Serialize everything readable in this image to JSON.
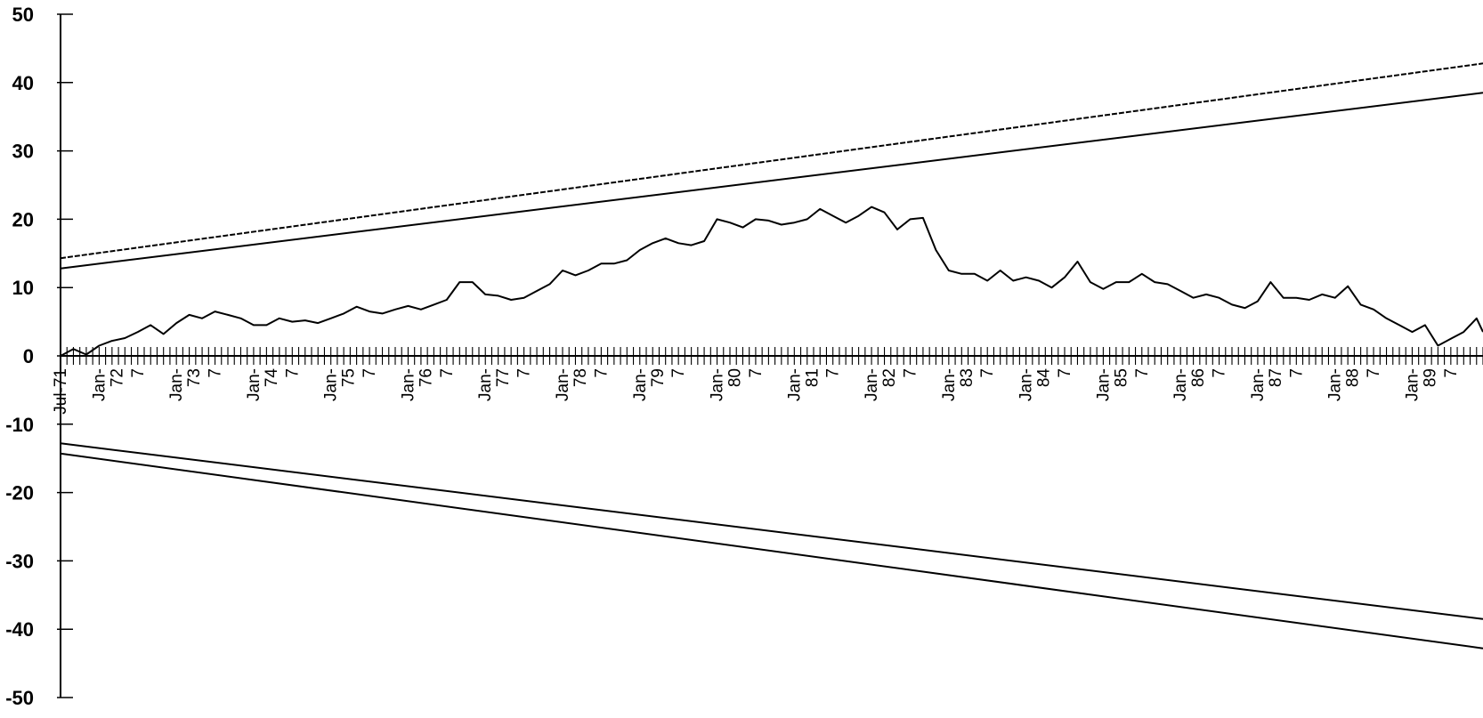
{
  "chart_data": {
    "type": "line",
    "title": "",
    "xlabel": "",
    "ylabel": "",
    "x_range": [
      "1971-07",
      "1989-12"
    ],
    "ylim": [
      -50,
      50
    ],
    "grid": false,
    "legend": "none",
    "y_ticks": [
      50,
      40,
      30,
      20,
      10,
      0,
      -10,
      -20,
      -30,
      -40,
      -50
    ],
    "y_tick_labels": [
      "50",
      "40",
      "30",
      "20",
      "10",
      "0",
      "-10",
      "-20",
      "-30",
      "-40",
      "-50"
    ],
    "x_tick_labels": [
      {
        "date": "1971-07",
        "line1": "Jul-71",
        "line2": ""
      },
      {
        "date": "1972-01",
        "line1": "Jan-",
        "line2": "72"
      },
      {
        "date": "1972-07",
        "line1": "7",
        "line2": ""
      },
      {
        "date": "1973-01",
        "line1": "Jan-",
        "line2": "73"
      },
      {
        "date": "1973-07",
        "line1": "7",
        "line2": ""
      },
      {
        "date": "1974-01",
        "line1": "Jan-",
        "line2": "74"
      },
      {
        "date": "1974-07",
        "line1": "7",
        "line2": ""
      },
      {
        "date": "1975-01",
        "line1": "Jan-",
        "line2": "75"
      },
      {
        "date": "1975-07",
        "line1": "7",
        "line2": ""
      },
      {
        "date": "1976-01",
        "line1": "Jan-",
        "line2": "76"
      },
      {
        "date": "1976-07",
        "line1": "7",
        "line2": ""
      },
      {
        "date": "1977-01",
        "line1": "Jan-",
        "line2": "77"
      },
      {
        "date": "1977-07",
        "line1": "7",
        "line2": ""
      },
      {
        "date": "1978-01",
        "line1": "Jan-",
        "line2": "78"
      },
      {
        "date": "1978-07",
        "line1": "7",
        "line2": ""
      },
      {
        "date": "1979-01",
        "line1": "Jan-",
        "line2": "79"
      },
      {
        "date": "1979-07",
        "line1": "7",
        "line2": ""
      },
      {
        "date": "1980-01",
        "line1": "Jan-",
        "line2": "80"
      },
      {
        "date": "1980-07",
        "line1": "7",
        "line2": ""
      },
      {
        "date": "1981-01",
        "line1": "Jan-",
        "line2": "81"
      },
      {
        "date": "1981-07",
        "line1": "7",
        "line2": ""
      },
      {
        "date": "1982-01",
        "line1": "Jan-",
        "line2": "82"
      },
      {
        "date": "1982-07",
        "line1": "7",
        "line2": ""
      },
      {
        "date": "1983-01",
        "line1": "Jan-",
        "line2": "83"
      },
      {
        "date": "1983-07",
        "line1": "7",
        "line2": ""
      },
      {
        "date": "1984-01",
        "line1": "Jan-",
        "line2": "84"
      },
      {
        "date": "1984-07",
        "line1": "7",
        "line2": ""
      },
      {
        "date": "1985-01",
        "line1": "Jan-",
        "line2": "85"
      },
      {
        "date": "1985-07",
        "line1": "7",
        "line2": ""
      },
      {
        "date": "1986-01",
        "line1": "Jan-",
        "line2": "86"
      },
      {
        "date": "1986-07",
        "line1": "7",
        "line2": ""
      },
      {
        "date": "1987-01",
        "line1": "Jan-",
        "line2": "87"
      },
      {
        "date": "1987-07",
        "line1": "7",
        "line2": ""
      },
      {
        "date": "1988-01",
        "line1": "Jan-",
        "line2": "88"
      },
      {
        "date": "1988-07",
        "line1": "7",
        "line2": ""
      },
      {
        "date": "1989-01",
        "line1": "Jan-",
        "line2": "89"
      },
      {
        "date": "1989-07",
        "line1": "7",
        "line2": ""
      }
    ],
    "series": [
      {
        "style": "solid",
        "x": [
          "1971-07",
          "1971-09",
          "1971-11",
          "1972-01",
          "1972-03",
          "1972-05",
          "1972-07",
          "1972-09",
          "1972-11",
          "1973-01",
          "1973-03",
          "1973-05",
          "1973-07",
          "1973-09",
          "1973-11",
          "1974-01",
          "1974-03",
          "1974-05",
          "1974-07",
          "1974-09",
          "1974-11",
          "1975-01",
          "1975-03",
          "1975-05",
          "1975-07",
          "1975-09",
          "1975-11",
          "1976-01",
          "1976-03",
          "1976-05",
          "1976-07",
          "1976-09",
          "1976-11",
          "1977-01",
          "1977-03",
          "1977-05",
          "1977-07",
          "1977-09",
          "1977-11",
          "1978-01",
          "1978-03",
          "1978-05",
          "1978-07",
          "1978-09",
          "1978-11",
          "1979-01",
          "1979-03",
          "1979-05",
          "1979-07",
          "1979-09",
          "1979-11",
          "1980-01",
          "1980-03",
          "1980-05",
          "1980-07",
          "1980-09",
          "1980-11",
          "1981-01",
          "1981-03",
          "1981-05",
          "1981-07",
          "1981-09",
          "1981-11",
          "1982-01",
          "1982-03",
          "1982-05",
          "1982-07",
          "1982-09",
          "1982-11",
          "1983-01",
          "1983-03",
          "1983-05",
          "1983-07",
          "1983-09",
          "1983-11",
          "1984-01",
          "1984-03",
          "1984-05",
          "1984-07",
          "1984-09",
          "1984-11",
          "1985-01",
          "1985-03",
          "1985-05",
          "1985-07",
          "1985-09",
          "1985-11",
          "1986-01",
          "1986-03",
          "1986-05",
          "1986-07",
          "1986-09",
          "1986-11",
          "1987-01",
          "1987-03",
          "1987-05",
          "1987-07",
          "1987-09",
          "1987-11",
          "1988-01",
          "1988-03",
          "1988-05",
          "1988-07",
          "1988-09",
          "1988-11",
          "1989-01",
          "1989-03",
          "1989-05",
          "1989-07",
          "1989-09",
          "1989-11",
          "1989-12"
        ],
        "y": [
          0.0,
          1.0,
          0.2,
          1.5,
          2.2,
          2.6,
          3.5,
          4.5,
          3.2,
          4.8,
          6.0,
          5.5,
          6.5,
          6.0,
          5.5,
          4.5,
          4.5,
          5.5,
          5.0,
          5.2,
          4.8,
          5.5,
          6.2,
          7.2,
          6.5,
          6.2,
          6.8,
          7.3,
          6.8,
          7.5,
          8.2,
          10.8,
          10.8,
          9.0,
          8.8,
          8.2,
          8.5,
          9.5,
          10.5,
          12.5,
          11.8,
          12.5,
          13.5,
          13.5,
          14.0,
          15.5,
          16.5,
          17.2,
          16.5,
          16.2,
          16.8,
          20.0,
          19.5,
          18.8,
          20.0,
          19.8,
          19.2,
          19.5,
          20.0,
          21.5,
          20.5,
          19.5,
          20.5,
          21.8,
          21.0,
          18.5,
          20.0,
          20.2,
          15.5,
          12.5,
          12.0,
          12.0,
          11.0,
          12.5,
          11.0,
          11.5,
          11.0,
          10.0,
          11.5,
          13.8,
          10.8,
          9.8,
          10.8,
          10.8,
          12.0,
          10.8,
          10.5,
          9.5,
          8.5,
          9.0,
          8.5,
          7.5,
          7.0,
          8.0,
          10.8,
          8.5,
          8.5,
          8.2,
          9.0,
          8.5,
          10.2,
          7.5,
          6.8,
          5.5,
          4.5,
          3.5,
          4.5,
          1.5,
          2.5,
          3.5,
          5.5,
          3.5
        ]
      },
      {
        "style": "dashed",
        "x": [
          "1971-07",
          "1989-12"
        ],
        "y": [
          14.3,
          42.8
        ]
      },
      {
        "style": "solid",
        "x": [
          "1971-07",
          "1989-12"
        ],
        "y": [
          12.8,
          38.5
        ]
      },
      {
        "style": "solid",
        "x": [
          "1971-07",
          "1989-12"
        ],
        "y": [
          -12.8,
          -38.5
        ]
      },
      {
        "style": "solid",
        "x": [
          "1971-07",
          "1989-12"
        ],
        "y": [
          -14.3,
          -42.8
        ]
      }
    ]
  }
}
